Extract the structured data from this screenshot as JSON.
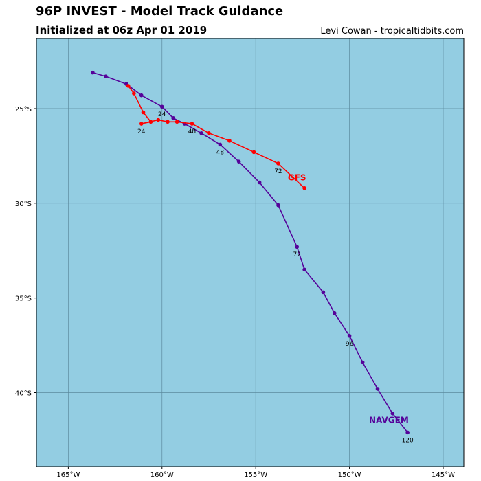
{
  "header": {
    "title": "96P INVEST - Model Track Guidance",
    "subtitle": "Initialized at 06z Apr 01 2019",
    "credit": "Levi Cowan - tropicaltidbits.com"
  },
  "map": {
    "lon_range": [
      -166.7,
      -143.9
    ],
    "lat_range": [
      -43.9,
      -21.3
    ],
    "ocean_color": "#93cde2",
    "grid_color": "#5b8a9e",
    "lon_ticks": [
      -165,
      -160,
      -155,
      -150,
      -145
    ],
    "lon_labels": [
      "165°W",
      "160°W",
      "155°W",
      "150°W",
      "145°W"
    ],
    "lat_ticks": [
      -25,
      -30,
      -35,
      -40
    ],
    "lat_labels": [
      "25°S",
      "30°S",
      "35°S",
      "40°S"
    ]
  },
  "tracks": [
    {
      "name": "NAVGEM",
      "color": "#55039a",
      "points": [
        [
          -163.7,
          -23.1
        ],
        [
          -163.0,
          -23.3
        ],
        [
          -161.9,
          -23.7
        ],
        [
          -161.1,
          -24.3
        ],
        [
          -160.0,
          -24.9
        ],
        [
          -159.4,
          -25.5
        ],
        [
          -158.8,
          -25.8
        ],
        [
          -157.9,
          -26.3
        ],
        [
          -156.9,
          -26.9
        ],
        [
          -155.9,
          -27.8
        ],
        [
          -154.8,
          -28.9
        ],
        [
          -153.8,
          -30.1
        ],
        [
          -152.8,
          -32.3
        ],
        [
          -152.4,
          -33.5
        ],
        [
          -151.4,
          -34.7
        ],
        [
          -150.8,
          -35.8
        ],
        [
          -150.0,
          -37.0
        ],
        [
          -149.3,
          -38.4
        ],
        [
          -148.5,
          -39.8
        ],
        [
          -147.7,
          -41.1
        ],
        [
          -146.9,
          -42.1
        ]
      ],
      "time_labels": [
        {
          "index": 4,
          "text": "24"
        },
        {
          "index": 8,
          "text": "48"
        },
        {
          "index": 12,
          "text": "72"
        },
        {
          "index": 16,
          "text": "96"
        },
        {
          "index": 20,
          "text": "120"
        }
      ],
      "name_label_at": [
        -147.9,
        -41.6
      ]
    },
    {
      "name": "GFS",
      "color": "#ff0000",
      "points": [
        [
          -161.8,
          -23.8
        ],
        [
          -161.5,
          -24.2
        ],
        [
          -161.0,
          -25.2
        ],
        [
          -160.6,
          -25.7
        ],
        [
          -161.1,
          -25.8
        ],
        [
          -160.2,
          -25.6
        ],
        [
          -159.7,
          -25.7
        ],
        [
          -159.2,
          -25.7
        ],
        [
          -158.4,
          -25.8
        ],
        [
          -157.5,
          -26.3
        ],
        [
          -156.4,
          -26.7
        ],
        [
          -155.1,
          -27.3
        ],
        [
          -153.8,
          -27.9
        ],
        [
          -152.4,
          -29.2
        ]
      ],
      "time_labels": [
        {
          "index": 4,
          "text": "24"
        },
        {
          "index": 8,
          "text": "48"
        },
        {
          "index": 12,
          "text": "72"
        }
      ],
      "name_label_at": [
        -152.8,
        -28.8
      ]
    }
  ]
}
